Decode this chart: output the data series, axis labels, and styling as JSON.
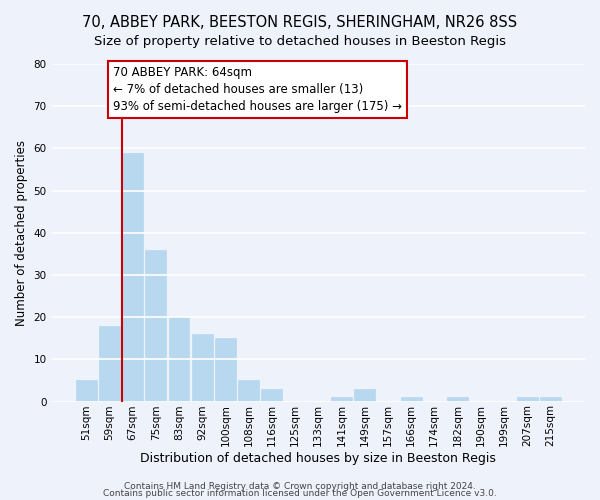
{
  "title1": "70, ABBEY PARK, BEESTON REGIS, SHERINGHAM, NR26 8SS",
  "title2": "Size of property relative to detached houses in Beeston Regis",
  "xlabel": "Distribution of detached houses by size in Beeston Regis",
  "ylabel": "Number of detached properties",
  "footer1": "Contains HM Land Registry data © Crown copyright and database right 2024.",
  "footer2": "Contains public sector information licensed under the Open Government Licence v3.0.",
  "bar_labels": [
    "51sqm",
    "59sqm",
    "67sqm",
    "75sqm",
    "83sqm",
    "92sqm",
    "100sqm",
    "108sqm",
    "116sqm",
    "125sqm",
    "133sqm",
    "141sqm",
    "149sqm",
    "157sqm",
    "166sqm",
    "174sqm",
    "182sqm",
    "190sqm",
    "199sqm",
    "207sqm",
    "215sqm"
  ],
  "bar_values": [
    5,
    18,
    59,
    36,
    20,
    16,
    15,
    5,
    3,
    0,
    0,
    1,
    3,
    0,
    1,
    0,
    1,
    0,
    0,
    1,
    1
  ],
  "bar_color": "#b8d8f0",
  "bar_edge_color": "#b8d8f0",
  "highlight_line_color": "#cc0000",
  "annotation_line1": "70 ABBEY PARK: 64sqm",
  "annotation_line2": "← 7% of detached houses are smaller (13)",
  "annotation_line3": "93% of semi-detached houses are larger (175) →",
  "annotation_box_color": "white",
  "annotation_box_edge": "#cc0000",
  "ylim": [
    0,
    80
  ],
  "yticks": [
    0,
    10,
    20,
    30,
    40,
    50,
    60,
    70,
    80
  ],
  "bg_color": "#eef2fb",
  "grid_color": "white",
  "title1_fontsize": 10.5,
  "title2_fontsize": 9.5,
  "xlabel_fontsize": 9,
  "ylabel_fontsize": 8.5,
  "tick_fontsize": 7.5,
  "annotation_fontsize": 8.5,
  "footer_fontsize": 6.5
}
